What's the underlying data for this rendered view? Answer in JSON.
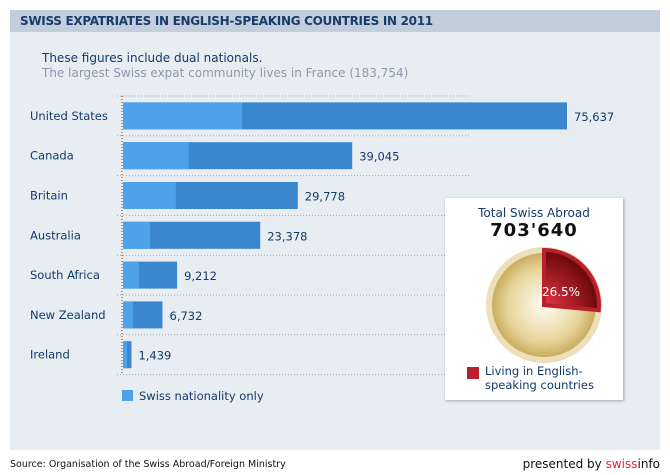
{
  "title": "SWISS EXPATRIATES IN ENGLISH-SPEAKING COUNTRIES IN 2011",
  "subtitle1": "These figures include dual nationals.",
  "subtitle2": "The largest Swiss expat community lives in France (183,754)",
  "chart_data": [
    {
      "type": "bar",
      "orientation": "horizontal",
      "categories": [
        "United States",
        "Canada",
        "Britain",
        "Australia",
        "South Africa",
        "New Zealand",
        "Ireland"
      ],
      "values": [
        75637,
        39045,
        29778,
        23378,
        9212,
        6732,
        1439
      ],
      "value_labels": [
        "75,637",
        "39,045",
        "29,778",
        "23,378",
        "9,212",
        "6,732",
        "1,439"
      ],
      "series": [
        {
          "name": "Swiss nationality only",
          "values": [
            20300,
            11200,
            9000,
            4600,
            2700,
            1700,
            700
          ]
        }
      ],
      "colors": {
        "total": "#3a86cf",
        "swiss_only": "#4ea2ea"
      },
      "legend": "bottom-left",
      "grid": true
    },
    {
      "type": "pie",
      "title": "Total Swiss Abroad",
      "total": "703'640",
      "slices": [
        {
          "name": "Living in English-speaking countries",
          "value": 26.5,
          "label": "26.5%",
          "color": "#b8202e"
        },
        {
          "value": 73.5,
          "color": "#e2cf8e"
        }
      ],
      "legend": "bottom"
    }
  ],
  "source": "Source: Organisation of the Swiss Abroad/Foreign Ministry",
  "presented_by": "presented by ",
  "brand_a": "swiss",
  "brand_b": "info"
}
